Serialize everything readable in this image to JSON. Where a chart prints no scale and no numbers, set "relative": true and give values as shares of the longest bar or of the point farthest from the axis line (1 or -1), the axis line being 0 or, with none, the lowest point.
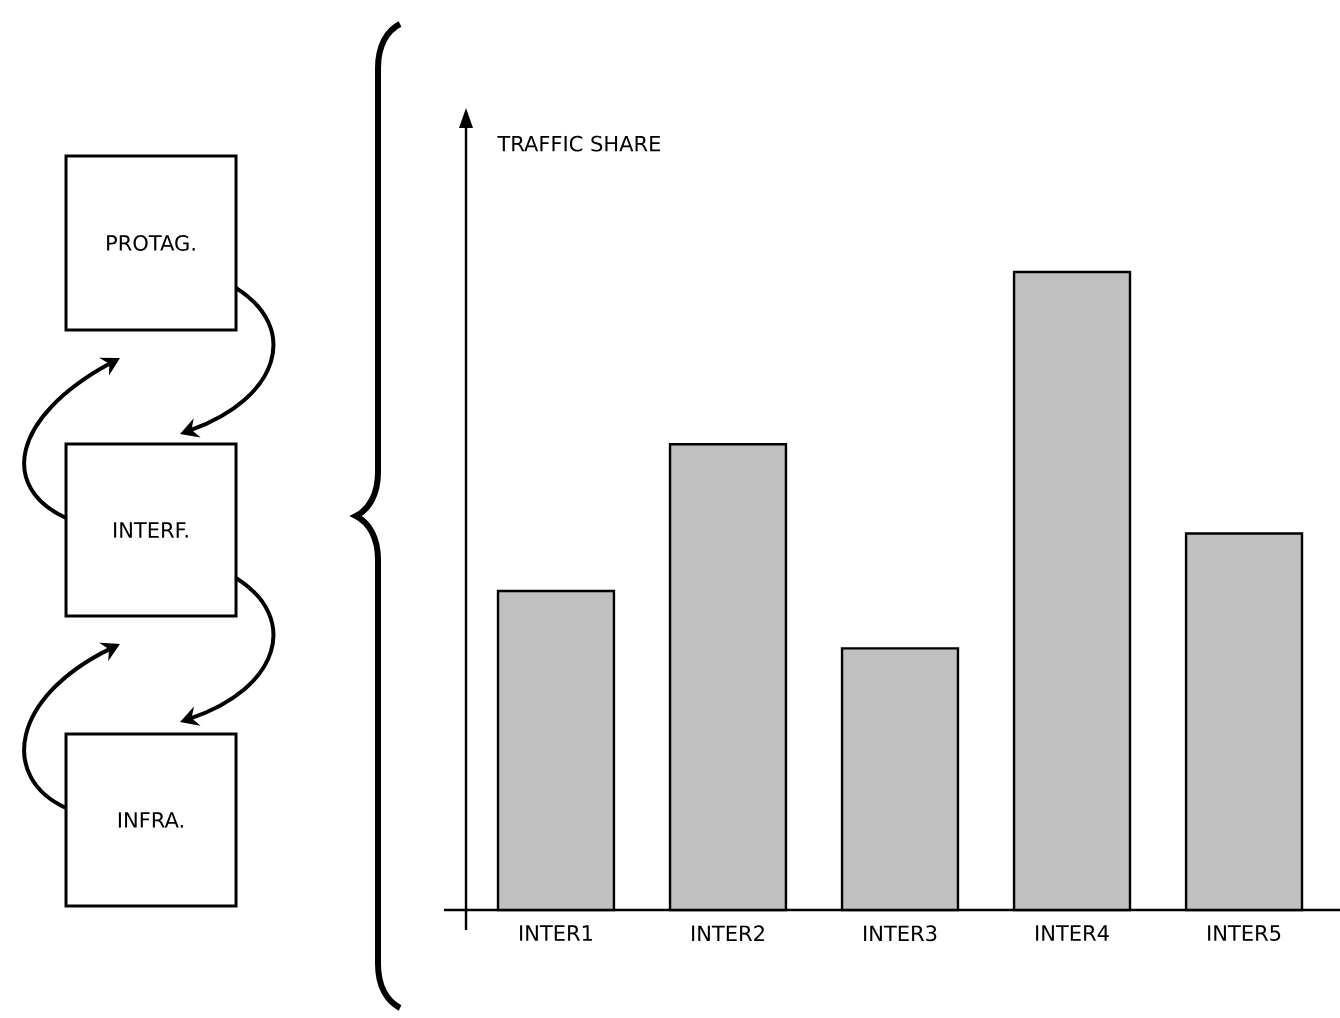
{
  "chart_data": {
    "type": "bar",
    "categories": [
      "INTER1",
      "INTER2",
      "INTER3",
      "INTER4",
      "INTER5"
    ],
    "values": [
      0.5,
      0.73,
      0.41,
      1,
      0.59
    ],
    "color": "#c0c0c0",
    "relative": true,
    "annotations": [
      "PROTAG.",
      "INTERF.",
      "INFRA.",
      "TRAFFIC SHARE"
    ]
  }
}
